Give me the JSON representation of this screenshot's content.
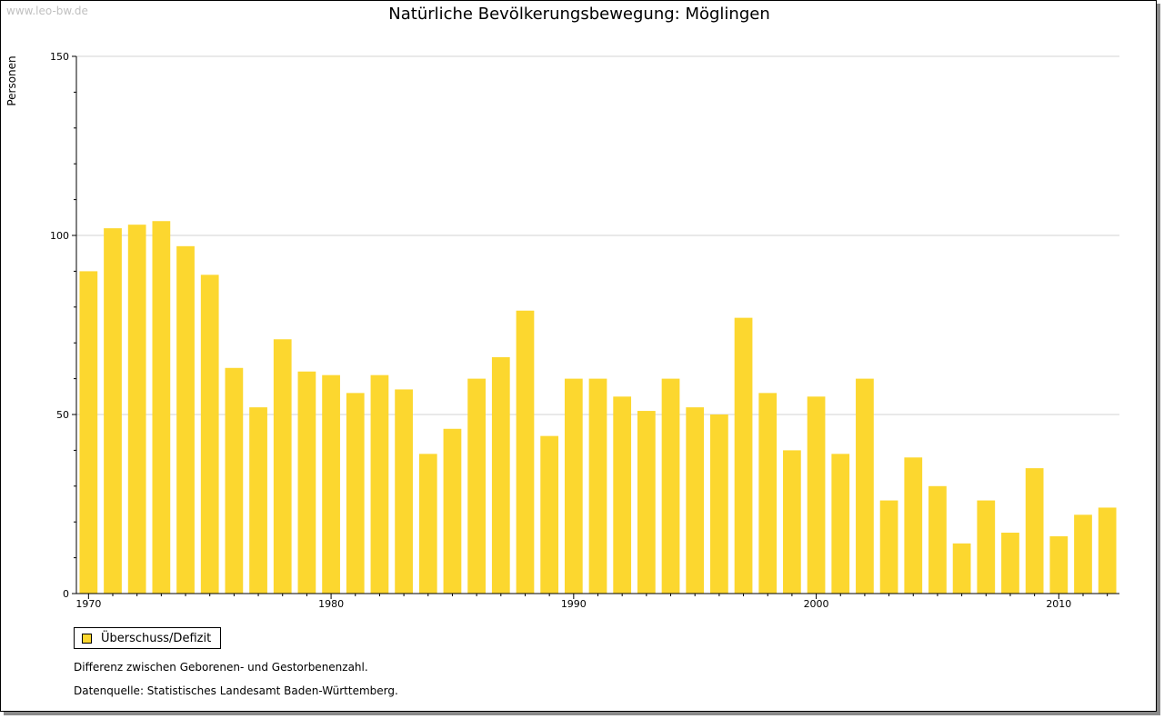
{
  "watermark": "www.leo-bw.de",
  "colors": {
    "bar": "#fcd72f",
    "grid": "#d3d3d3",
    "axis": "#000000"
  },
  "legend": {
    "label": "Überschuss/Defizit"
  },
  "notes": {
    "description": "Differenz zwischen Geborenen- und Gestorbenenzahl.",
    "source": "Datenquelle: Statistisches Landesamt Baden-Württemberg."
  },
  "chart_data": {
    "type": "bar",
    "title": "Natürliche Bevölkerungsbewegung: Möglingen",
    "ylabel": "Personen",
    "xlabel": "",
    "ylim": [
      0,
      150
    ],
    "yticks": [
      0,
      50,
      100,
      150
    ],
    "xticks": [
      1970,
      1980,
      1990,
      2000,
      2010
    ],
    "grid": true,
    "legend_position": "bottom-left",
    "categories": [
      1970,
      1971,
      1972,
      1973,
      1974,
      1975,
      1976,
      1977,
      1978,
      1979,
      1980,
      1981,
      1982,
      1983,
      1984,
      1985,
      1986,
      1987,
      1988,
      1989,
      1990,
      1991,
      1992,
      1993,
      1994,
      1995,
      1996,
      1997,
      1998,
      1999,
      2000,
      2001,
      2002,
      2003,
      2004,
      2005,
      2006,
      2007,
      2008,
      2009,
      2010,
      2011,
      2012
    ],
    "series": [
      {
        "name": "Überschuss/Defizit",
        "values": [
          90,
          102,
          103,
          104,
          97,
          89,
          63,
          52,
          71,
          62,
          61,
          56,
          61,
          57,
          39,
          46,
          60,
          66,
          79,
          44,
          60,
          60,
          55,
          51,
          60,
          52,
          50,
          77,
          56,
          40,
          55,
          39,
          60,
          26,
          38,
          30,
          14,
          26,
          17,
          35,
          16,
          22,
          24
        ]
      }
    ]
  }
}
